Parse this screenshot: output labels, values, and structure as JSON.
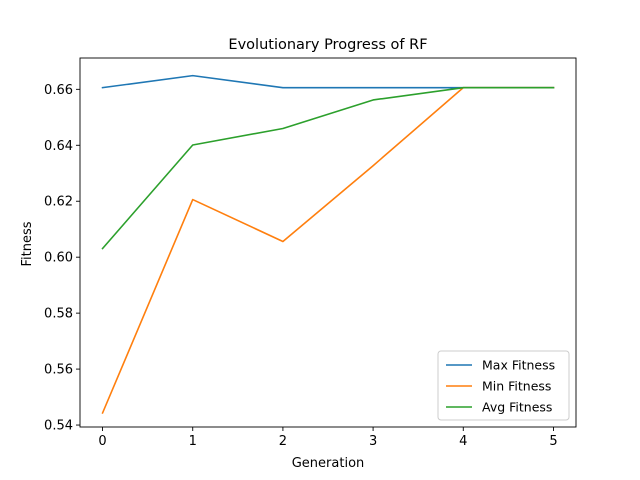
{
  "chart_data": {
    "type": "line",
    "title": "Evolutionary Progress of RF",
    "xlabel": "Generation",
    "ylabel": "Fitness",
    "x": [
      0,
      1,
      2,
      3,
      4,
      5
    ],
    "xlim": [
      -0.25,
      5.25
    ],
    "ylim": [
      0.5393,
      0.6712
    ],
    "xticks": [
      0,
      1,
      2,
      3,
      4,
      5
    ],
    "yticks": [
      0.54,
      0.56,
      0.58,
      0.6,
      0.62,
      0.64,
      0.66
    ],
    "ytick_labels": [
      "0.54",
      "0.56",
      "0.58",
      "0.60",
      "0.62",
      "0.64",
      "0.66"
    ],
    "grid": false,
    "legend_position": "lower-right",
    "series": [
      {
        "name": "Max Fitness",
        "color": "#1f77b4",
        "values": [
          0.6606,
          0.6649,
          0.6606,
          0.6606,
          0.6606,
          0.6606
        ]
      },
      {
        "name": "Min Fitness",
        "color": "#ff7f0e",
        "values": [
          0.5443,
          0.6206,
          0.6056,
          0.6327,
          0.6606,
          0.6606
        ]
      },
      {
        "name": "Avg Fitness",
        "color": "#2ca02c",
        "values": [
          0.6031,
          0.6401,
          0.646,
          0.6562,
          0.6606,
          0.6606
        ]
      }
    ]
  }
}
